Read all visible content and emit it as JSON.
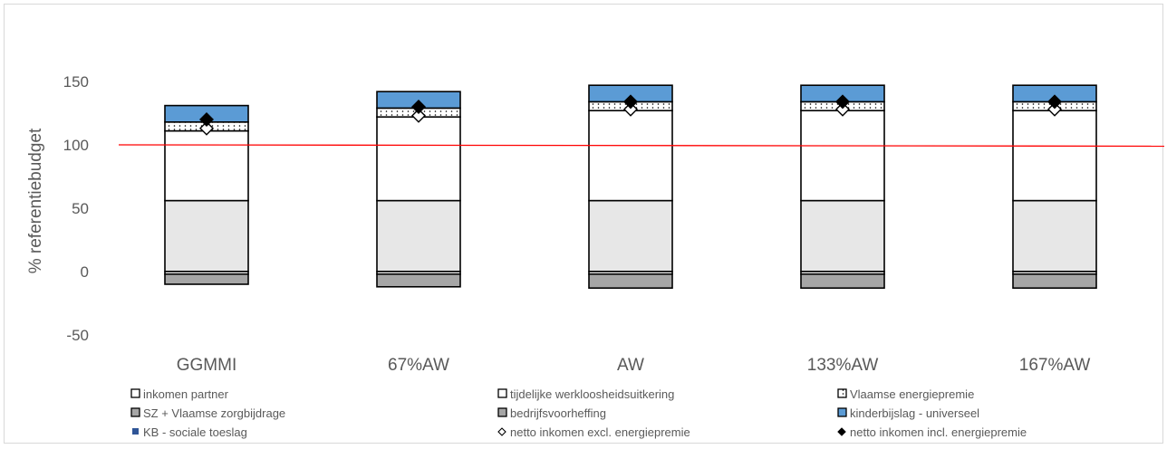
{
  "chart_data": {
    "type": "bar",
    "stacked": true,
    "ylabel": "% referentiebudget",
    "ylim": [
      -50,
      150
    ],
    "yticks": [
      -50,
      0,
      50,
      100,
      150
    ],
    "grid": false,
    "reference_line": {
      "value": 100,
      "color": "#ff0000"
    },
    "categories": [
      "GGMMI",
      "67%AW",
      "AW",
      "133%AW",
      "167%AW"
    ],
    "series": [
      {
        "name": "inkomen partner",
        "values": [
          56,
          56,
          56,
          56,
          56
        ],
        "color": "#e7e7e7"
      },
      {
        "name": "tijdelijke werkloosheidsuitkering",
        "values": [
          55,
          66,
          71,
          71,
          71
        ],
        "color": "#ffffff"
      },
      {
        "name": "Vlaamse energiepremie",
        "values": [
          7,
          7,
          7,
          7,
          7
        ],
        "color": "#ffffff",
        "pattern": "dots"
      },
      {
        "name": "SZ + Vlaamse zorgbijdrage",
        "values": [
          -2,
          -2,
          -2,
          -2,
          -2
        ],
        "color": "#ffffff"
      },
      {
        "name": "bedrijfsvoorheffing",
        "values": [
          -8,
          -10,
          -11,
          -11,
          -11
        ],
        "color": "#a6a6a6"
      },
      {
        "name": "kinderbijslag - universeel",
        "values": [
          13,
          13,
          13,
          13,
          13
        ],
        "color": "#5b9bd5"
      },
      {
        "name": "KB - sociale toeslag",
        "values": [
          0,
          0,
          0,
          0,
          0
        ],
        "color": "#2f5597"
      }
    ],
    "markers": [
      {
        "name": "netto inkomen excl. energiepremie",
        "values": [
          113,
          123,
          128,
          128,
          128
        ],
        "symbol": "diamond-open"
      },
      {
        "name": "netto inkomen incl. energiepremie",
        "values": [
          120,
          130,
          134,
          134,
          134
        ],
        "symbol": "diamond-filled"
      }
    ],
    "legend_position": "bottom",
    "legend_order": [
      "inkomen partner",
      "tijdelijke werkloosheidsuitkering",
      "Vlaamse energiepremie",
      "SZ + Vlaamse zorgbijdrage",
      "bedrijfsvoorheffing",
      "kinderbijslag - universeel",
      "KB - sociale toeslag",
      "netto inkomen excl. energiepremie",
      "netto inkomen incl. energiepremie"
    ],
    "legend_symbols": [
      "box-open",
      "box-open",
      "box-dotted",
      "box-grey",
      "box-grey",
      "box-blue",
      "square-navy",
      "diamond-open",
      "diamond-filled"
    ]
  }
}
